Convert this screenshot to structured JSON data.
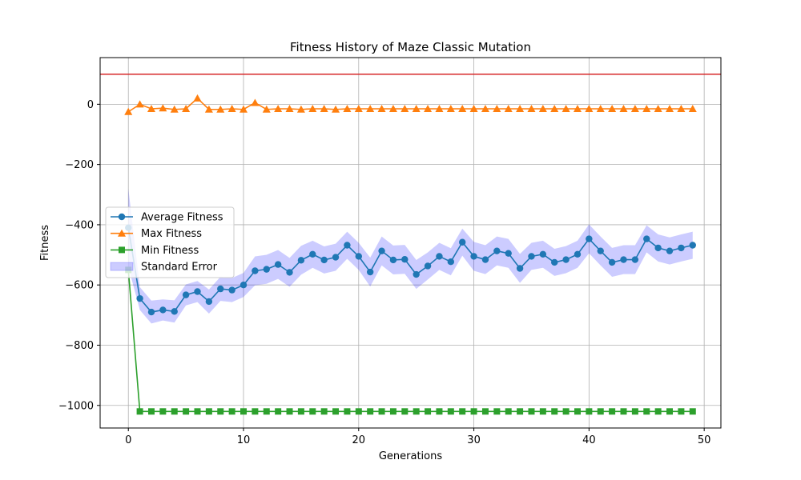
{
  "chart_data": {
    "type": "line",
    "title": "Fitness History of Maze Classic Mutation",
    "xlabel": "Generations",
    "ylabel": "Fitness",
    "xlim": [
      -2.45,
      51.45
    ],
    "ylim": [
      -1075,
      155
    ],
    "xticks": [
      0,
      10,
      20,
      30,
      40,
      50
    ],
    "yticks": [
      0,
      -200,
      -400,
      -600,
      -800,
      -1000
    ],
    "xtick_labels": [
      "0",
      "10",
      "20",
      "30",
      "40",
      "50"
    ],
    "ytick_labels": [
      "0",
      "−200",
      "−400",
      "−600",
      "−800",
      "−1000"
    ],
    "grid": true,
    "legend_position": "center-left",
    "reference_line": {
      "y": 100,
      "color": "#d62728"
    },
    "x": [
      0,
      1,
      2,
      3,
      4,
      5,
      6,
      7,
      8,
      9,
      10,
      11,
      12,
      13,
      14,
      15,
      16,
      17,
      18,
      19,
      20,
      21,
      22,
      23,
      24,
      25,
      26,
      27,
      28,
      29,
      30,
      31,
      32,
      33,
      34,
      35,
      36,
      37,
      38,
      39,
      40,
      41,
      42,
      43,
      44,
      45,
      46,
      47,
      48,
      49
    ],
    "series": [
      {
        "name": "Average Fitness",
        "color": "#1f77b4",
        "marker": "circle",
        "values": [
          -410,
          -645,
          -690,
          -683,
          -688,
          -633,
          -622,
          -655,
          -613,
          -617,
          -600,
          -553,
          -548,
          -532,
          -558,
          -518,
          -498,
          -517,
          -508,
          -468,
          -505,
          -557,
          -487,
          -517,
          -515,
          -565,
          -537,
          -505,
          -523,
          -458,
          -505,
          -516,
          -487,
          -495,
          -545,
          -505,
          -498,
          -525,
          -516,
          -498,
          -447,
          -487,
          -525,
          -516,
          -516,
          -447,
          -477,
          -487,
          -477,
          -468
        ]
      },
      {
        "name": "Max Fitness",
        "color": "#ff7f0e",
        "marker": "triangle",
        "values": [
          -25,
          0,
          -15,
          -13,
          -17,
          -15,
          20,
          -17,
          -17,
          -15,
          -17,
          5,
          -17,
          -15,
          -15,
          -17,
          -15,
          -15,
          -17,
          -15,
          -15,
          -15,
          -15,
          -15,
          -15,
          -15,
          -15,
          -15,
          -15,
          -15,
          -15,
          -15,
          -15,
          -15,
          -15,
          -15,
          -15,
          -15,
          -15,
          -15,
          -15,
          -15,
          -15,
          -15,
          -15,
          -15,
          -15,
          -15,
          -15,
          -15
        ]
      },
      {
        "name": "Min Fitness",
        "color": "#2ca02c",
        "marker": "square",
        "values": [
          -550,
          -1020,
          -1020,
          -1020,
          -1020,
          -1020,
          -1020,
          -1020,
          -1020,
          -1020,
          -1020,
          -1020,
          -1020,
          -1020,
          -1020,
          -1020,
          -1020,
          -1020,
          -1020,
          -1020,
          -1020,
          -1020,
          -1020,
          -1020,
          -1020,
          -1020,
          -1020,
          -1020,
          -1020,
          -1020,
          -1020,
          -1020,
          -1020,
          -1020,
          -1020,
          -1020,
          -1020,
          -1020,
          -1020,
          -1020,
          -1020,
          -1020,
          -1020,
          -1020,
          -1020,
          -1020,
          -1020,
          -1020,
          -1020,
          -1020
        ]
      }
    ],
    "error_band": {
      "name": "Standard Error",
      "color": "#0000ff",
      "opacity": 0.2,
      "half_width": [
        130,
        38,
        38,
        35,
        37,
        35,
        35,
        40,
        40,
        40,
        40,
        48,
        48,
        48,
        48,
        48,
        45,
        45,
        45,
        45,
        45,
        48,
        48,
        48,
        48,
        48,
        45,
        45,
        45,
        45,
        48,
        48,
        48,
        48,
        48,
        45,
        45,
        45,
        45,
        45,
        48,
        48,
        48,
        48,
        48,
        45,
        45,
        45,
        45,
        45
      ]
    },
    "legend": [
      "Average Fitness",
      "Max Fitness",
      "Min Fitness",
      "Standard Error"
    ]
  }
}
